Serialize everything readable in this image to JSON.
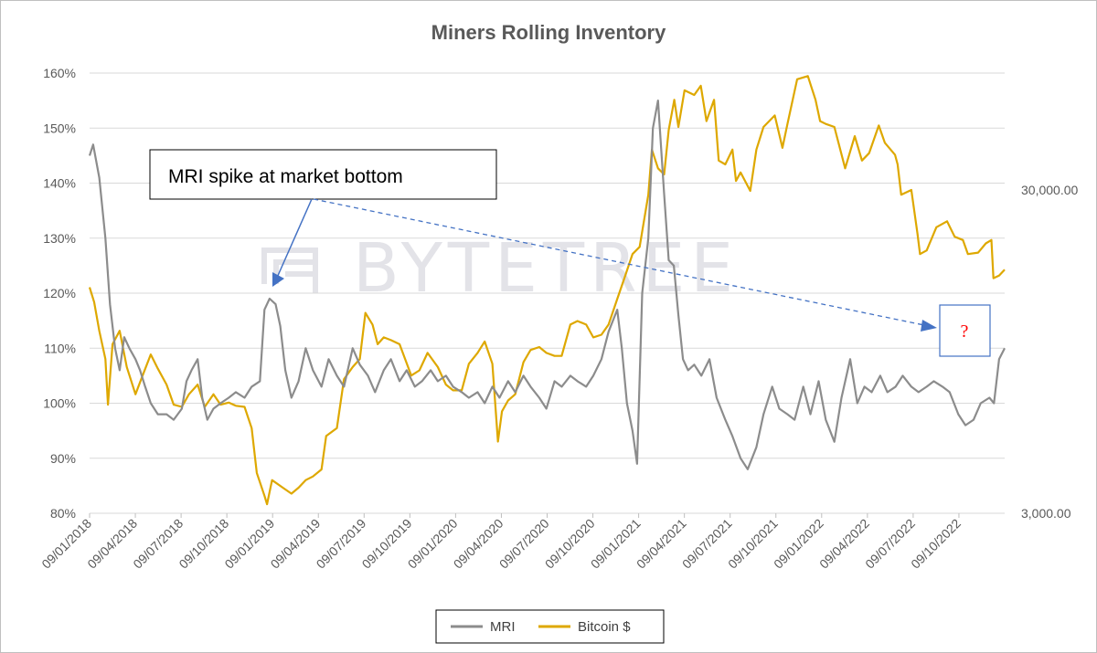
{
  "chart_data": {
    "type": "line",
    "title": "Miners Rolling Inventory",
    "watermark": "BYTETREE",
    "left_axis": {
      "ticks": [
        "80%",
        "90%",
        "100%",
        "110%",
        "120%",
        "130%",
        "140%",
        "150%",
        "160%"
      ],
      "ylim": [
        80,
        160
      ],
      "unit": "%"
    },
    "right_axis": {
      "ticks": [
        "3,000.00",
        "30,000.00"
      ],
      "scale": "log"
    },
    "x_ticks": [
      "09/01/2018",
      "09/04/2018",
      "09/07/2018",
      "09/10/2018",
      "09/01/2019",
      "09/04/2019",
      "09/07/2019",
      "09/10/2019",
      "09/01/2020",
      "09/04/2020",
      "09/07/2020",
      "09/10/2020",
      "09/01/2021",
      "09/04/2021",
      "09/07/2021",
      "09/10/2021",
      "09/01/2022",
      "09/04/2022",
      "09/07/2022",
      "09/10/2022"
    ],
    "grid": "horizontal",
    "legend_position": "bottom",
    "series": [
      {
        "name": "MRI",
        "color": "#8c8c8c",
        "axis": "left",
        "points": [
          [
            "2018-01-01",
            145
          ],
          [
            "2018-01-08",
            147
          ],
          [
            "2018-01-20",
            141
          ],
          [
            "2018-02-01",
            130
          ],
          [
            "2018-02-10",
            118
          ],
          [
            "2018-02-20",
            110
          ],
          [
            "2018-03-01",
            106
          ],
          [
            "2018-03-10",
            112
          ],
          [
            "2018-03-20",
            110
          ],
          [
            "2018-04-01",
            108
          ],
          [
            "2018-04-10",
            106
          ],
          [
            "2018-04-20",
            103
          ],
          [
            "2018-05-01",
            100
          ],
          [
            "2018-05-15",
            98
          ],
          [
            "2018-06-01",
            98
          ],
          [
            "2018-06-15",
            97
          ],
          [
            "2018-07-01",
            99
          ],
          [
            "2018-07-10",
            104
          ],
          [
            "2018-07-20",
            106
          ],
          [
            "2018-08-01",
            108
          ],
          [
            "2018-08-10",
            101
          ],
          [
            "2018-08-20",
            97
          ],
          [
            "2018-09-01",
            99
          ],
          [
            "2018-09-15",
            100
          ],
          [
            "2018-10-01",
            101
          ],
          [
            "2018-10-15",
            102
          ],
          [
            "2018-11-01",
            101
          ],
          [
            "2018-11-15",
            103
          ],
          [
            "2018-12-01",
            104
          ],
          [
            "2018-12-10",
            117
          ],
          [
            "2018-12-20",
            119
          ],
          [
            "2019-01-01",
            118
          ],
          [
            "2019-01-10",
            114
          ],
          [
            "2019-01-20",
            106
          ],
          [
            "2019-02-01",
            101
          ],
          [
            "2019-02-15",
            104
          ],
          [
            "2019-03-01",
            110
          ],
          [
            "2019-03-15",
            106
          ],
          [
            "2019-04-01",
            103
          ],
          [
            "2019-04-15",
            108
          ],
          [
            "2019-05-01",
            105
          ],
          [
            "2019-05-15",
            103
          ],
          [
            "2019-06-01",
            110
          ],
          [
            "2019-06-15",
            107
          ],
          [
            "2019-07-01",
            105
          ],
          [
            "2019-07-15",
            102
          ],
          [
            "2019-08-01",
            106
          ],
          [
            "2019-08-15",
            108
          ],
          [
            "2019-09-01",
            104
          ],
          [
            "2019-09-15",
            106
          ],
          [
            "2019-10-01",
            103
          ],
          [
            "2019-10-15",
            104
          ],
          [
            "2019-11-01",
            106
          ],
          [
            "2019-11-15",
            104
          ],
          [
            "2019-12-01",
            105
          ],
          [
            "2019-12-15",
            103
          ],
          [
            "2020-01-01",
            102
          ],
          [
            "2020-01-15",
            101
          ],
          [
            "2020-02-01",
            102
          ],
          [
            "2020-02-15",
            100
          ],
          [
            "2020-03-01",
            103
          ],
          [
            "2020-03-15",
            101
          ],
          [
            "2020-04-01",
            104
          ],
          [
            "2020-04-15",
            102
          ],
          [
            "2020-05-01",
            105
          ],
          [
            "2020-05-15",
            103
          ],
          [
            "2020-06-01",
            101
          ],
          [
            "2020-06-15",
            99
          ],
          [
            "2020-07-01",
            104
          ],
          [
            "2020-07-15",
            103
          ],
          [
            "2020-08-01",
            105
          ],
          [
            "2020-08-15",
            104
          ],
          [
            "2020-09-01",
            103
          ],
          [
            "2020-09-15",
            105
          ],
          [
            "2020-10-01",
            108
          ],
          [
            "2020-10-15",
            113
          ],
          [
            "2020-11-01",
            117
          ],
          [
            "2020-11-10",
            110
          ],
          [
            "2020-11-20",
            100
          ],
          [
            "2020-12-01",
            95
          ],
          [
            "2020-12-10",
            89
          ],
          [
            "2020-12-20",
            120
          ],
          [
            "2021-01-01",
            130
          ],
          [
            "2021-01-10",
            150
          ],
          [
            "2021-01-20",
            155
          ],
          [
            "2021-02-01",
            138
          ],
          [
            "2021-02-10",
            126
          ],
          [
            "2021-02-20",
            125
          ],
          [
            "2021-03-01",
            116
          ],
          [
            "2021-03-10",
            108
          ],
          [
            "2021-03-20",
            106
          ],
          [
            "2021-04-01",
            107
          ],
          [
            "2021-04-15",
            105
          ],
          [
            "2021-05-01",
            108
          ],
          [
            "2021-05-15",
            101
          ],
          [
            "2021-06-01",
            97
          ],
          [
            "2021-06-15",
            94
          ],
          [
            "2021-07-01",
            90
          ],
          [
            "2021-07-15",
            88
          ],
          [
            "2021-08-01",
            92
          ],
          [
            "2021-08-15",
            98
          ],
          [
            "2021-09-01",
            103
          ],
          [
            "2021-09-15",
            99
          ],
          [
            "2021-10-01",
            98
          ],
          [
            "2021-10-15",
            97
          ],
          [
            "2021-11-01",
            103
          ],
          [
            "2021-11-15",
            98
          ],
          [
            "2021-12-01",
            104
          ],
          [
            "2021-12-15",
            97
          ],
          [
            "2022-01-01",
            93
          ],
          [
            "2022-01-15",
            101
          ],
          [
            "2022-02-01",
            108
          ],
          [
            "2022-02-15",
            100
          ],
          [
            "2022-03-01",
            103
          ],
          [
            "2022-03-15",
            102
          ],
          [
            "2022-04-01",
            105
          ],
          [
            "2022-04-15",
            102
          ],
          [
            "2022-05-01",
            103
          ],
          [
            "2022-05-15",
            105
          ],
          [
            "2022-06-01",
            103
          ],
          [
            "2022-06-15",
            102
          ],
          [
            "2022-07-01",
            103
          ],
          [
            "2022-07-15",
            104
          ],
          [
            "2022-08-01",
            103
          ],
          [
            "2022-08-15",
            102
          ],
          [
            "2022-09-01",
            98
          ],
          [
            "2022-09-15",
            96
          ],
          [
            "2022-10-01",
            97
          ],
          [
            "2022-10-15",
            100
          ],
          [
            "2022-11-01",
            101
          ],
          [
            "2022-11-10",
            100
          ],
          [
            "2022-11-20",
            108
          ],
          [
            "2022-12-01",
            110
          ]
        ]
      },
      {
        "name": "Bitcoin $",
        "color": "#dea800",
        "axis": "right",
        "points": [
          [
            "2018-01-01",
            15000
          ],
          [
            "2018-01-10",
            13500
          ],
          [
            "2018-01-20",
            11000
          ],
          [
            "2018-02-01",
            9000
          ],
          [
            "2018-02-06",
            6500
          ],
          [
            "2018-02-15",
            10000
          ],
          [
            "2018-03-01",
            11000
          ],
          [
            "2018-03-15",
            8500
          ],
          [
            "2018-04-01",
            7000
          ],
          [
            "2018-04-15",
            8000
          ],
          [
            "2018-05-01",
            9300
          ],
          [
            "2018-05-15",
            8400
          ],
          [
            "2018-06-01",
            7500
          ],
          [
            "2018-06-15",
            6500
          ],
          [
            "2018-07-01",
            6400
          ],
          [
            "2018-07-15",
            7000
          ],
          [
            "2018-08-01",
            7500
          ],
          [
            "2018-08-15",
            6400
          ],
          [
            "2018-09-01",
            7000
          ],
          [
            "2018-09-15",
            6500
          ],
          [
            "2018-10-01",
            6600
          ],
          [
            "2018-10-15",
            6450
          ],
          [
            "2018-11-01",
            6400
          ],
          [
            "2018-11-15",
            5500
          ],
          [
            "2018-11-25",
            4000
          ],
          [
            "2018-12-10",
            3400
          ],
          [
            "2018-12-15",
            3200
          ],
          [
            "2018-12-25",
            3800
          ],
          [
            "2019-01-15",
            3600
          ],
          [
            "2019-02-01",
            3450
          ],
          [
            "2019-02-15",
            3600
          ],
          [
            "2019-03-01",
            3800
          ],
          [
            "2019-03-15",
            3900
          ],
          [
            "2019-04-01",
            4100
          ],
          [
            "2019-04-10",
            5200
          ],
          [
            "2019-05-01",
            5500
          ],
          [
            "2019-05-15",
            7800
          ],
          [
            "2019-06-01",
            8500
          ],
          [
            "2019-06-15",
            9000
          ],
          [
            "2019-06-26",
            12500
          ],
          [
            "2019-07-10",
            11500
          ],
          [
            "2019-07-20",
            10000
          ],
          [
            "2019-08-01",
            10500
          ],
          [
            "2019-08-15",
            10300
          ],
          [
            "2019-09-01",
            10000
          ],
          [
            "2019-09-24",
            8000
          ],
          [
            "2019-10-10",
            8300
          ],
          [
            "2019-10-26",
            9400
          ],
          [
            "2019-11-15",
            8500
          ],
          [
            "2019-12-01",
            7500
          ],
          [
            "2019-12-15",
            7200
          ],
          [
            "2020-01-01",
            7200
          ],
          [
            "2020-01-15",
            8700
          ],
          [
            "2020-02-01",
            9400
          ],
          [
            "2020-02-15",
            10200
          ],
          [
            "2020-03-01",
            8700
          ],
          [
            "2020-03-12",
            5000
          ],
          [
            "2020-03-20",
            6200
          ],
          [
            "2020-04-01",
            6700
          ],
          [
            "2020-04-15",
            7000
          ],
          [
            "2020-05-01",
            8800
          ],
          [
            "2020-05-15",
            9600
          ],
          [
            "2020-06-01",
            9800
          ],
          [
            "2020-06-15",
            9400
          ],
          [
            "2020-07-01",
            9200
          ],
          [
            "2020-07-15",
            9200
          ],
          [
            "2020-08-01",
            11500
          ],
          [
            "2020-08-15",
            11800
          ],
          [
            "2020-09-01",
            11500
          ],
          [
            "2020-09-15",
            10500
          ],
          [
            "2020-10-01",
            10700
          ],
          [
            "2020-10-15",
            11500
          ],
          [
            "2020-11-01",
            13800
          ],
          [
            "2020-11-15",
            16000
          ],
          [
            "2020-12-01",
            19000
          ],
          [
            "2020-12-15",
            20000
          ],
          [
            "2021-01-01",
            29000
          ],
          [
            "2021-01-08",
            40000
          ],
          [
            "2021-01-20",
            35000
          ],
          [
            "2021-02-01",
            33500
          ],
          [
            "2021-02-10",
            46000
          ],
          [
            "2021-02-21",
            57000
          ],
          [
            "2021-03-01",
            47000
          ],
          [
            "2021-03-13",
            61000
          ],
          [
            "2021-04-01",
            59000
          ],
          [
            "2021-04-14",
            63000
          ],
          [
            "2021-04-25",
            49000
          ],
          [
            "2021-05-10",
            57000
          ],
          [
            "2021-05-19",
            37000
          ],
          [
            "2021-06-01",
            36000
          ],
          [
            "2021-06-15",
            40000
          ],
          [
            "2021-06-22",
            32000
          ],
          [
            "2021-07-01",
            34000
          ],
          [
            "2021-07-20",
            29800
          ],
          [
            "2021-08-01",
            40000
          ],
          [
            "2021-08-15",
            47000
          ],
          [
            "2021-09-06",
            51000
          ],
          [
            "2021-09-21",
            40500
          ],
          [
            "2021-10-01",
            48000
          ],
          [
            "2021-10-20",
            66000
          ],
          [
            "2021-11-10",
            67500
          ],
          [
            "2021-11-25",
            57000
          ],
          [
            "2021-12-04",
            49000
          ],
          [
            "2021-12-15",
            48000
          ],
          [
            "2022-01-01",
            47000
          ],
          [
            "2022-01-22",
            35000
          ],
          [
            "2022-02-10",
            44000
          ],
          [
            "2022-02-24",
            37000
          ],
          [
            "2022-03-10",
            39000
          ],
          [
            "2022-03-29",
            47500
          ],
          [
            "2022-04-10",
            42000
          ],
          [
            "2022-04-30",
            38500
          ],
          [
            "2022-05-05",
            36000
          ],
          [
            "2022-05-12",
            29000
          ],
          [
            "2022-06-01",
            30000
          ],
          [
            "2022-06-13",
            22000
          ],
          [
            "2022-06-18",
            19000
          ],
          [
            "2022-07-01",
            19500
          ],
          [
            "2022-07-20",
            23000
          ],
          [
            "2022-08-10",
            24000
          ],
          [
            "2022-08-25",
            21500
          ],
          [
            "2022-09-10",
            21000
          ],
          [
            "2022-09-20",
            19000
          ],
          [
            "2022-10-10",
            19200
          ],
          [
            "2022-10-25",
            20500
          ],
          [
            "2022-11-05",
            21000
          ],
          [
            "2022-11-09",
            16000
          ],
          [
            "2022-11-20",
            16300
          ],
          [
            "2022-12-01",
            17000
          ]
        ]
      }
    ],
    "annotations": [
      {
        "text": "MRI spike at market bottom",
        "type": "callout"
      },
      {
        "text": "?",
        "type": "box",
        "color": "#ff0000"
      }
    ]
  }
}
